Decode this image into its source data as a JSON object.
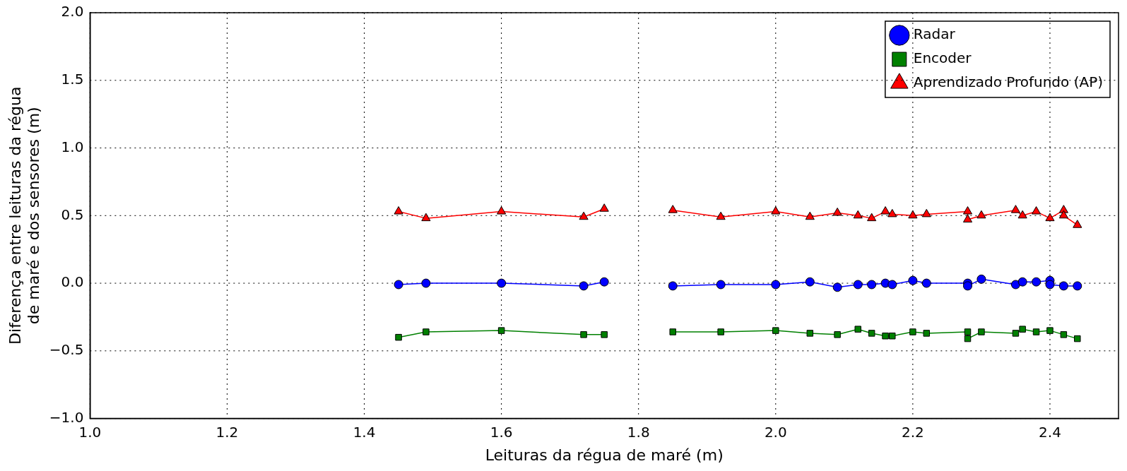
{
  "chart_data": {
    "type": "line",
    "xlabel": "Leituras da régua de maré (m)",
    "ylabel": "Diferença entre leituras da régua\nde maré e dos sensores (m)",
    "xlim": [
      1.0,
      2.5
    ],
    "xticks": [
      {
        "value": 1.0,
        "label": "1.0"
      },
      {
        "value": 1.2,
        "label": "1.2"
      },
      {
        "value": 1.4,
        "label": "1.4"
      },
      {
        "value": 1.6,
        "label": "1.6"
      },
      {
        "value": 1.8,
        "label": "1.8"
      },
      {
        "value": 2.0,
        "label": "2.0"
      },
      {
        "value": 2.2,
        "label": "2.2"
      },
      {
        "value": 2.4,
        "label": "2.4"
      }
    ],
    "ylim": [
      -1.0,
      2.0
    ],
    "yticks": [
      {
        "value": -1.0,
        "label": "−1.0"
      },
      {
        "value": -0.5,
        "label": "−0.5"
      },
      {
        "value": 0,
        "label": "0.0"
      },
      {
        "value": 0.5,
        "label": "0.5"
      },
      {
        "value": 1.0,
        "label": "1.0"
      },
      {
        "value": 1.5,
        "label": "1.5"
      },
      {
        "value": 2.0,
        "label": "2.0"
      }
    ],
    "grid": true,
    "legend": "top right",
    "line_style": "solid",
    "series": [
      {
        "name": "Radar",
        "color": "#0000ff",
        "marker": "circle",
        "x": [
          1.45,
          1.49,
          1.6,
          1.72,
          1.75,
          1.8,
          1.85,
          1.92,
          2.0,
          2.05,
          2.09,
          2.12,
          2.14,
          2.16,
          2.17,
          2.2,
          2.22,
          2.28,
          2.28,
          2.3,
          2.35,
          2.36,
          2.38,
          2.4,
          2.4,
          2.42,
          2.44
        ],
        "values": [
          -0.01,
          0.0,
          0.0,
          -0.02,
          0.01,
          null,
          -0.02,
          -0.01,
          -0.01,
          0.01,
          -0.03,
          -0.01,
          -0.01,
          0.0,
          -0.01,
          0.02,
          0.0,
          0.0,
          -0.02,
          0.03,
          -0.01,
          0.01,
          0.01,
          0.02,
          -0.01,
          -0.02,
          -0.02
        ]
      },
      {
        "name": "Encoder",
        "color": "#008000",
        "marker": "square",
        "x": [
          1.45,
          1.49,
          1.6,
          1.72,
          1.75,
          1.8,
          1.85,
          1.92,
          2.0,
          2.05,
          2.09,
          2.12,
          2.14,
          2.16,
          2.17,
          2.2,
          2.22,
          2.28,
          2.28,
          2.3,
          2.35,
          2.36,
          2.38,
          2.4,
          2.42,
          2.44
        ],
        "values": [
          -0.4,
          -0.36,
          -0.35,
          -0.38,
          -0.38,
          null,
          -0.36,
          -0.36,
          -0.35,
          -0.37,
          -0.38,
          -0.34,
          -0.37,
          -0.39,
          -0.39,
          -0.36,
          -0.37,
          -0.36,
          -0.41,
          -0.36,
          -0.37,
          -0.34,
          -0.36,
          -0.35,
          -0.38,
          -0.41
        ]
      },
      {
        "name": "Aprendizado Profundo (AP)",
        "color": "#ff0000",
        "marker": "triangle",
        "x": [
          1.45,
          1.49,
          1.6,
          1.72,
          1.75,
          1.8,
          1.85,
          1.92,
          2.0,
          2.05,
          2.09,
          2.12,
          2.14,
          2.16,
          2.17,
          2.2,
          2.22,
          2.28,
          2.28,
          2.3,
          2.35,
          2.36,
          2.38,
          2.4,
          2.42,
          2.42,
          2.44
        ],
        "values": [
          0.53,
          0.48,
          0.53,
          0.49,
          0.55,
          null,
          0.54,
          0.49,
          0.53,
          0.49,
          0.52,
          0.5,
          0.48,
          0.53,
          0.51,
          0.5,
          0.51,
          0.53,
          0.47,
          0.5,
          0.54,
          0.5,
          0.53,
          0.48,
          0.54,
          0.5,
          0.43
        ]
      }
    ]
  }
}
